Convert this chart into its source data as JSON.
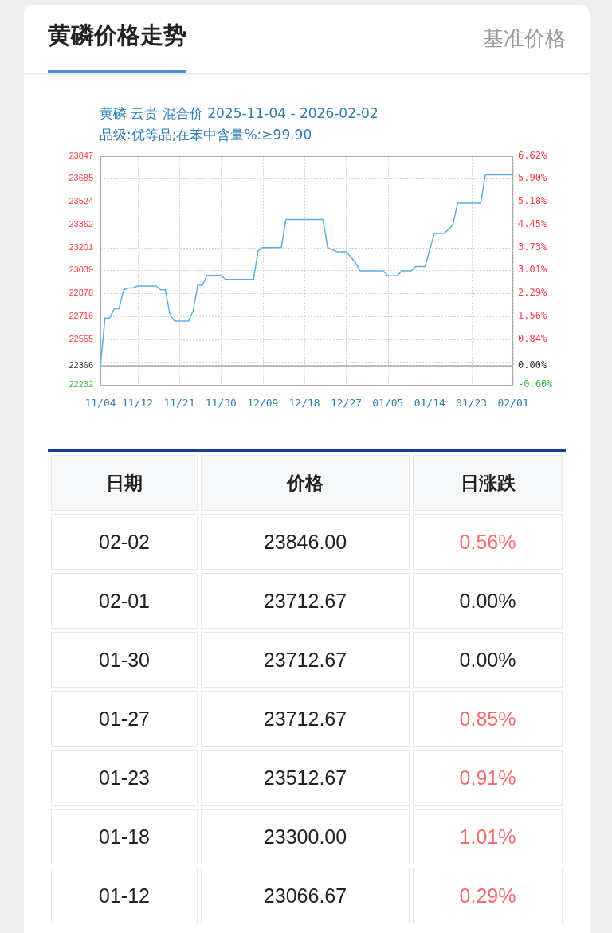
{
  "chart_data": [
    {
      "type": "line",
      "title": "黄磷价格走势",
      "subtitle": "黄磷 云贵 混合价 2025-11-04 - 2026-02-02",
      "annotations": [
        "品级:优等品;在苯中含量%:≥99.90",
        "基准价格"
      ],
      "x": [
        "2025-11-04",
        "2025-11-05",
        "2025-11-06",
        "2025-11-07",
        "2025-11-08",
        "2025-11-09",
        "2025-11-10",
        "2025-11-11",
        "2025-11-12",
        "2025-11-16",
        "2025-11-17",
        "2025-11-18",
        "2025-11-19",
        "2025-11-20",
        "2025-11-23",
        "2025-11-24",
        "2025-11-25",
        "2025-11-26",
        "2025-11-27",
        "2025-11-30",
        "2025-12-01",
        "2025-12-07",
        "2025-12-08",
        "2025-12-09",
        "2025-12-13",
        "2025-12-14",
        "2025-12-22",
        "2025-12-23",
        "2025-12-25",
        "2025-12-27",
        "2025-12-29",
        "2025-12-30",
        "2026-01-04",
        "2026-01-05",
        "2026-01-07",
        "2026-01-08",
        "2026-01-10",
        "2026-01-11",
        "2026-01-13",
        "2026-01-15",
        "2026-01-17",
        "2026-01-18",
        "2026-01-19",
        "2026-01-20",
        "2026-01-25",
        "2026-01-26",
        "2026-02-01"
      ],
      "series": [
        {
          "color": "#5dade2",
          "values": [
            22366,
            22703,
            22703,
            22768,
            22768,
            22902,
            22915,
            22915,
            22929,
            22929,
            22902,
            22902,
            22728,
            22681,
            22681,
            22755,
            22935,
            22935,
            23003,
            23003,
            22975,
            22975,
            23177,
            23200,
            23200,
            23398,
            23398,
            23200,
            23171,
            23171,
            23094,
            23036,
            23036,
            23000,
            23000,
            23036,
            23036,
            23067,
            23067,
            23300,
            23300,
            23324,
            23361,
            23513,
            23513,
            23713,
            23713
          ]
        }
      ],
      "xlim": [
        "2025-11-04",
        "2026-02-01"
      ],
      "xticks": [
        {
          "value": "2025-11-04",
          "label": "11/04"
        },
        {
          "value": "2025-11-12",
          "label": "11/12"
        },
        {
          "value": "2025-11-21",
          "label": "11/21"
        },
        {
          "value": "2025-11-30",
          "label": "11/30"
        },
        {
          "value": "2025-12-09",
          "label": "12/09"
        },
        {
          "value": "2025-12-18",
          "label": "12/18"
        },
        {
          "value": "2025-12-27",
          "label": "12/27"
        },
        {
          "value": "2026-01-05",
          "label": "01/05"
        },
        {
          "value": "2026-01-14",
          "label": "01/14"
        },
        {
          "value": "2026-01-23",
          "label": "01/23"
        },
        {
          "value": "2026-02-01",
          "label": "02/01"
        }
      ],
      "ylim": [
        22232,
        23847
      ],
      "yticks": [
        22232,
        22366,
        {
          "value": 22394,
          "label": null
        },
        22555,
        22716,
        22878,
        23039,
        23201,
        23362,
        23524,
        23685,
        23847
      ],
      "y2lim": [
        -0.6,
        6.62
      ],
      "y2ticks": [
        {
          "value": -0.6,
          "label": "-0.60%"
        },
        {
          "value": 0,
          "label": "0.00%"
        },
        {
          "value": 0.84,
          "label": "0.84%"
        },
        {
          "value": 1.56,
          "label": "1.56%"
        },
        {
          "value": 2.29,
          "label": "2.29%"
        },
        {
          "value": 3.01,
          "label": "3.01%"
        },
        {
          "value": 3.73,
          "label": "3.73%"
        },
        {
          "value": 4.45,
          "label": "4.45%"
        },
        {
          "value": 5.18,
          "label": "5.18%"
        },
        {
          "value": 5.9,
          "label": "5.90%"
        },
        {
          "value": 6.62,
          "label": "6.62%"
        }
      ],
      "ref_lines": [
        {
          "axis": "y2",
          "value": 0,
          "color": "#aaaaaa"
        }
      ],
      "grid": true,
      "legend": false,
      "marker": "none"
    },
    {
      "type": "other",
      "xlabel": "日期",
      "categories": [
        "02-02",
        "02-01",
        "01-30",
        "01-27",
        "01-23",
        "01-18",
        "01-12"
      ],
      "series": [
        {
          "name": "价格",
          "color": "#222222",
          "values": [
            23846.0,
            23712.67,
            23712.67,
            23712.67,
            23512.67,
            23300.0,
            23066.67
          ],
          "value_labels": [
            "23846.00",
            "23712.67",
            "23712.67",
            "23712.67",
            "23512.67",
            "23300.00",
            "23066.67"
          ]
        },
        {
          "name": "日涨跌",
          "colors": [
            "#f46b6b",
            "#222222",
            "#222222",
            "#f46b6b",
            "#f46b6b",
            "#f46b6b",
            "#f46b6b"
          ],
          "values": [
            0.56,
            0.0,
            0.0,
            0.85,
            0.91,
            1.01,
            0.29
          ],
          "value_labels": [
            "0.56%",
            "0.00%",
            "0.00%",
            "0.85%",
            "0.91%",
            "1.01%",
            "0.29%"
          ]
        }
      ]
    }
  ]
}
